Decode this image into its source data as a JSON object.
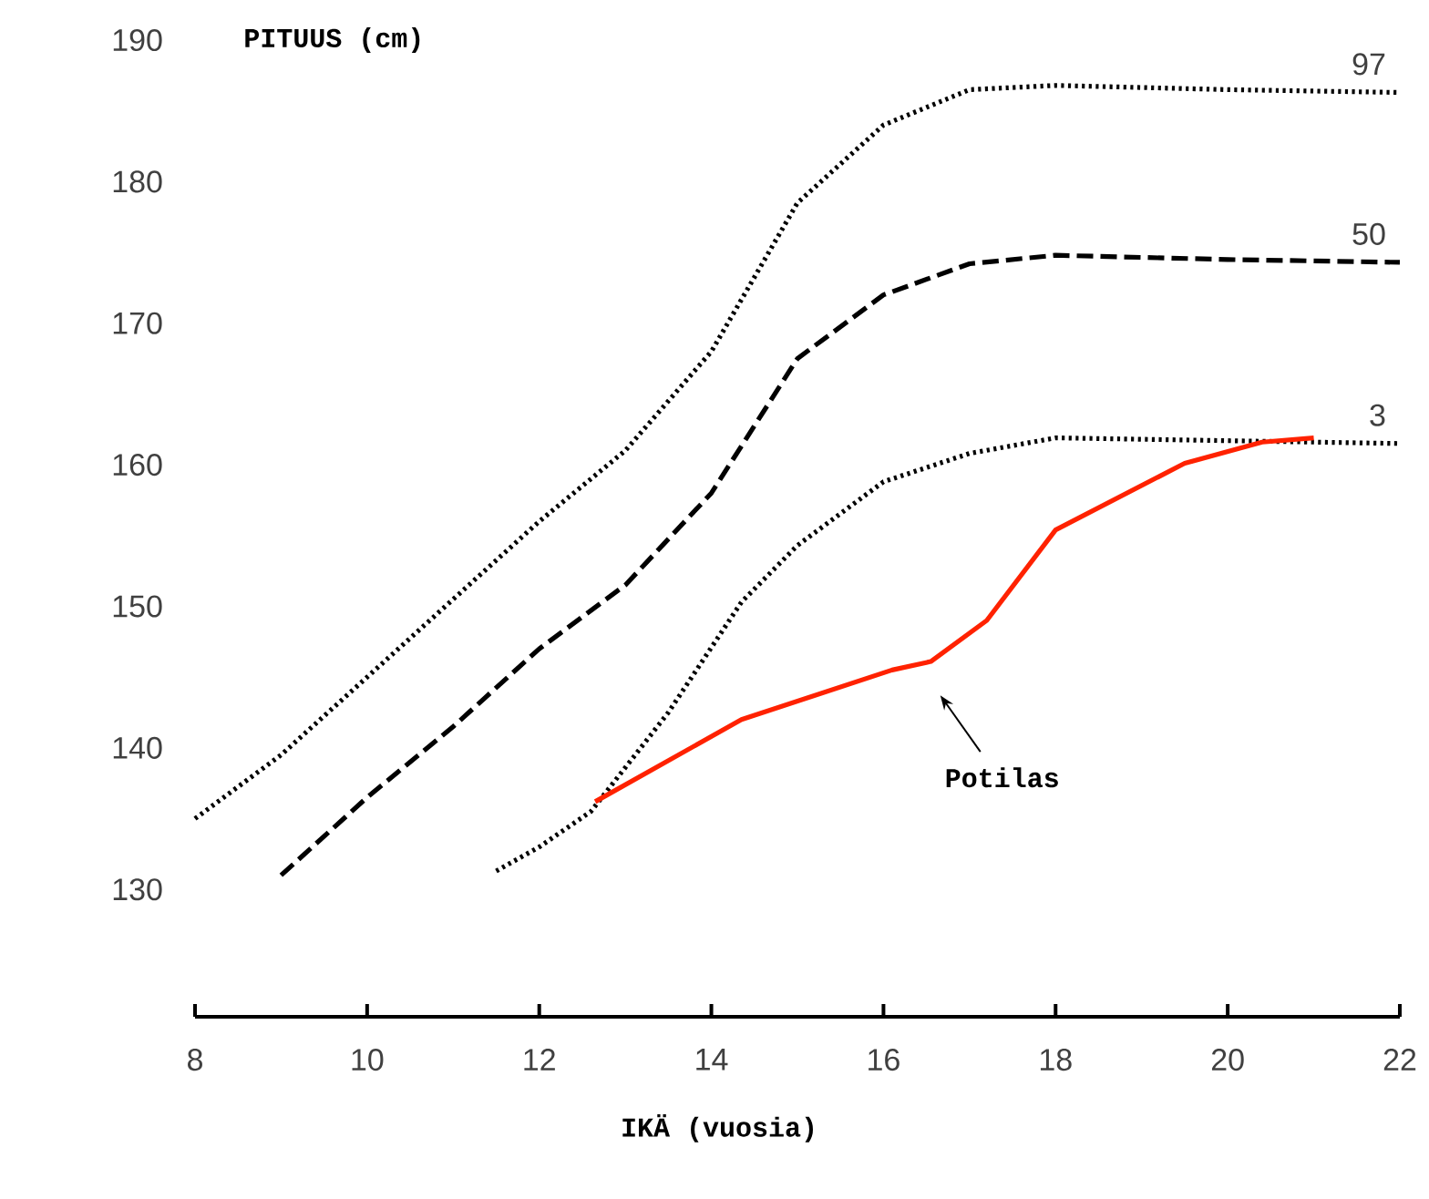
{
  "chart_data": {
    "type": "line",
    "xlabel": "IKÄ (vuosia)",
    "ylabel": "PITUUS (cm)",
    "annotations": [
      "Potilas"
    ],
    "xlim": [
      8,
      22
    ],
    "ylim": [
      121,
      190
    ],
    "xticks": [
      8,
      10,
      12,
      14,
      16,
      18,
      20,
      22
    ],
    "yticks": [
      130,
      140,
      150,
      160,
      170,
      180,
      190
    ],
    "series": [
      {
        "name": "97",
        "color": "#000000",
        "line_style": "dotted",
        "x": [
          8,
          9,
          10,
          11,
          12,
          13,
          14,
          15,
          16,
          17,
          18,
          20,
          22
        ],
        "values": [
          135,
          139.5,
          145,
          150.5,
          156,
          161,
          168,
          178.5,
          184,
          186.5,
          186.8,
          186.5,
          186.3
        ]
      },
      {
        "name": "50",
        "color": "#000000",
        "line_style": "dashed",
        "x": [
          9,
          10,
          11,
          12,
          13,
          14,
          15,
          16,
          17,
          18,
          20,
          22
        ],
        "values": [
          131,
          136.5,
          141.5,
          147,
          151.5,
          158,
          167.5,
          172,
          174.2,
          174.8,
          174.5,
          174.3
        ]
      },
      {
        "name": "3",
        "color": "#000000",
        "line_style": "dotted",
        "x": [
          11.5,
          12,
          12.6,
          13.5,
          14.35,
          15,
          16,
          17,
          18,
          20,
          22
        ],
        "values": [
          131.3,
          133,
          135.5,
          142.5,
          150.3,
          154.3,
          158.8,
          160.8,
          161.9,
          161.7,
          161.5
        ]
      },
      {
        "color": "#ff2200",
        "line_style": "solid",
        "x": [
          12.65,
          14.35,
          16.1,
          16.55,
          17.2,
          18,
          19.5,
          20.4,
          21
        ],
        "values": [
          136.2,
          142,
          145.5,
          146.1,
          149,
          155.4,
          160.1,
          161.6,
          161.9
        ]
      }
    ]
  }
}
